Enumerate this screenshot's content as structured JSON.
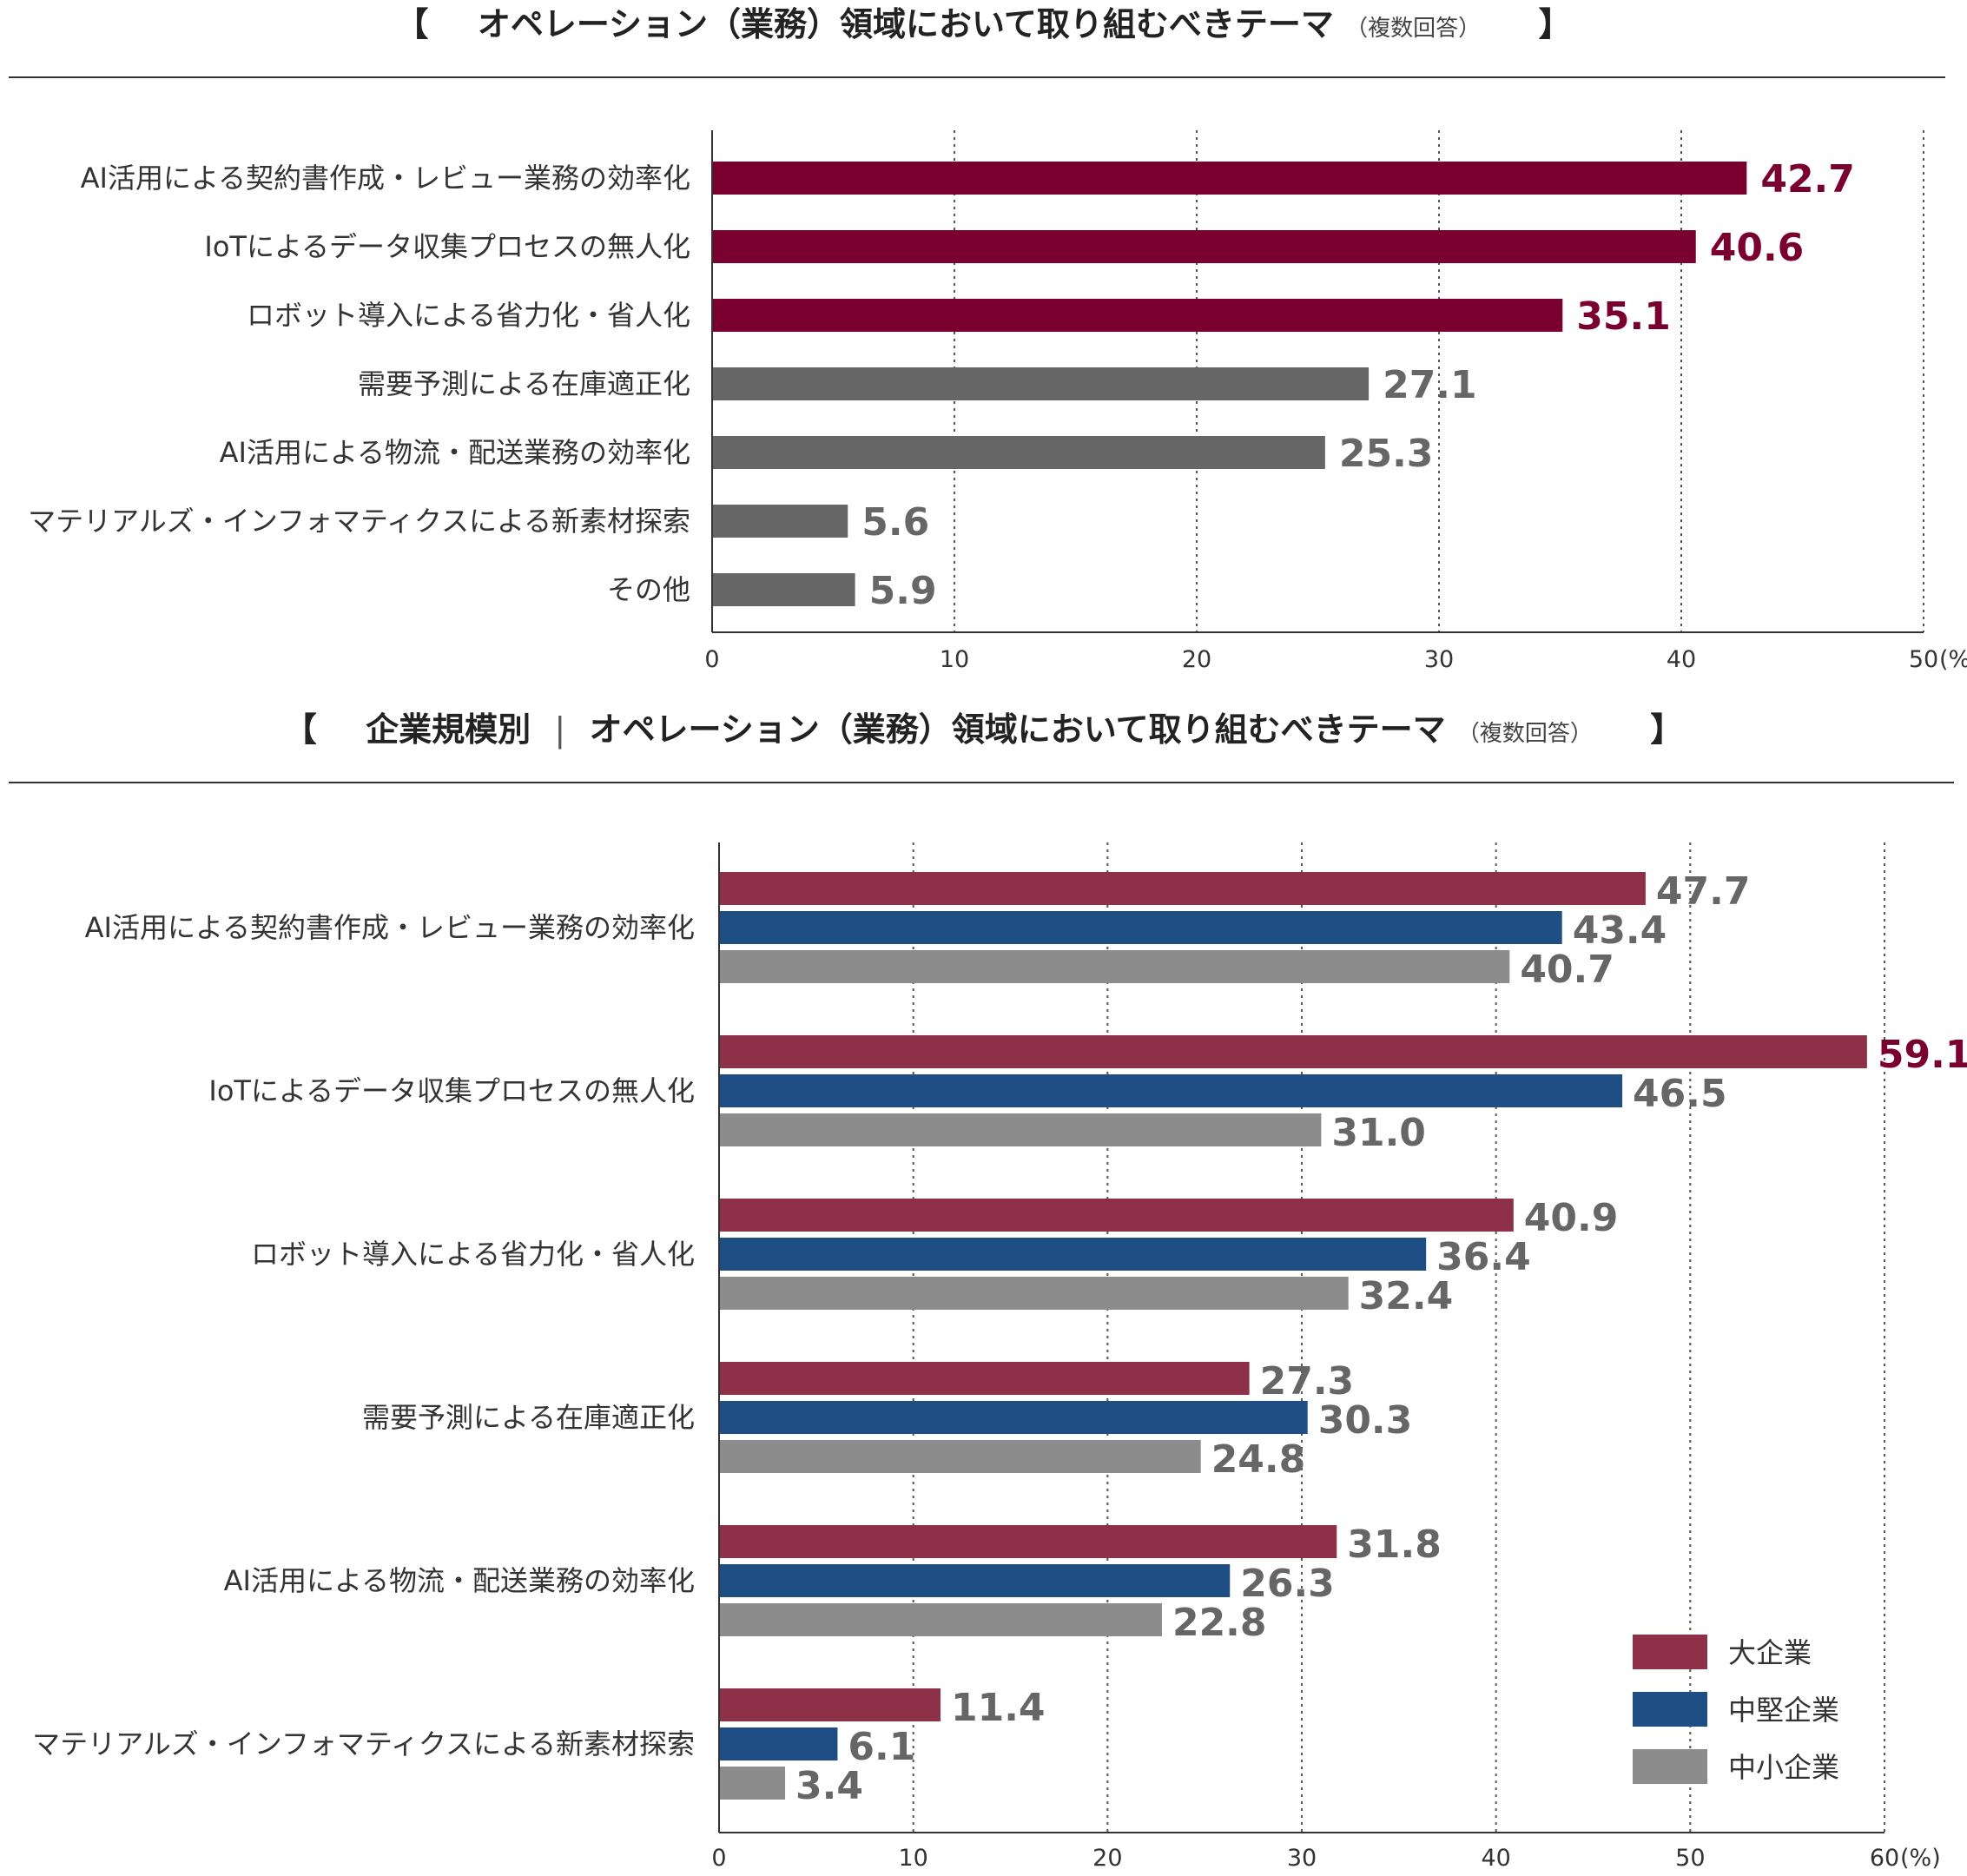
{
  "chart_data": [
    {
      "type": "bar",
      "orientation": "horizontal",
      "title": "オペレーション（業務）領域において取り組むべきテーマ",
      "title_note": "（複数回答）",
      "bracket_open": "【",
      "bracket_close": "】",
      "categories": [
        "AI活用による契約書作成・レビュー業務の効率化",
        "IoTによるデータ収集プロセスの無人化",
        "ロボット導入による省力化・省人化",
        "需要予測による在庫適正化",
        "AI活用による物流・配送業務の効率化",
        "マテリアルズ・インフォマティクスによる新素材探索",
        "その他"
      ],
      "values": [
        42.7,
        40.6,
        35.1,
        27.1,
        25.3,
        5.6,
        5.9
      ],
      "value_labels": [
        "42.7",
        "40.6",
        "35.1",
        "27.1",
        "25.3",
        "5.6",
        "5.9"
      ],
      "highlight": [
        true,
        true,
        true,
        false,
        false,
        false,
        false
      ],
      "colors": {
        "highlight": "#7a0030",
        "normal": "#666666",
        "grid": "#555555",
        "axis": "#333333"
      },
      "xlim": [
        0,
        50
      ],
      "xticks": [
        "0",
        "10",
        "20",
        "30",
        "40",
        "50"
      ],
      "unit": "(%)",
      "grid": true
    },
    {
      "type": "bar",
      "orientation": "horizontal",
      "title_prefix": "企業規模別",
      "title_separator": "|",
      "title": "オペレーション（業務）領域において取り組むべきテーマ",
      "title_note": "（複数回答）",
      "bracket_open": "【",
      "bracket_close": "】",
      "categories": [
        "AI活用による契約書作成・レビュー業務の効率化",
        "IoTによるデータ収集プロセスの無人化",
        "ロボット導入による省力化・省人化",
        "需要予測による在庫適正化",
        "AI活用による物流・配送業務の効率化",
        "マテリアルズ・インフォマティクスによる新素材探索"
      ],
      "series": [
        {
          "name": "大企業",
          "color": "#8f3049",
          "values": [
            47.7,
            59.1,
            40.9,
            27.3,
            31.8,
            11.4
          ],
          "value_labels": [
            "47.7",
            "59.1",
            "40.9",
            "27.3",
            "31.8",
            "11.4"
          ],
          "label_colors": [
            "#666666",
            "#7a0030",
            "#666666",
            "#666666",
            "#666666",
            "#666666"
          ]
        },
        {
          "name": "中堅企業",
          "color": "#1f4e85",
          "values": [
            43.4,
            46.5,
            36.4,
            30.3,
            26.3,
            6.1
          ],
          "value_labels": [
            "43.4",
            "46.5",
            "36.4",
            "30.3",
            "26.3",
            "6.1"
          ],
          "label_colors": [
            "#666666",
            "#666666",
            "#666666",
            "#666666",
            "#666666",
            "#666666"
          ]
        },
        {
          "name": "中小企業",
          "color": "#8c8c8c",
          "values": [
            40.7,
            31.0,
            32.4,
            24.8,
            22.8,
            3.4
          ],
          "value_labels": [
            "40.7",
            "31.0",
            "32.4",
            "24.8",
            "22.8",
            "3.4"
          ],
          "label_colors": [
            "#666666",
            "#666666",
            "#666666",
            "#666666",
            "#666666",
            "#666666"
          ]
        }
      ],
      "legend_position": "bottom-right",
      "xlim": [
        0,
        60
      ],
      "xticks": [
        "0",
        "10",
        "20",
        "30",
        "40",
        "50",
        "60"
      ],
      "unit": "(%)",
      "grid": true
    }
  ]
}
